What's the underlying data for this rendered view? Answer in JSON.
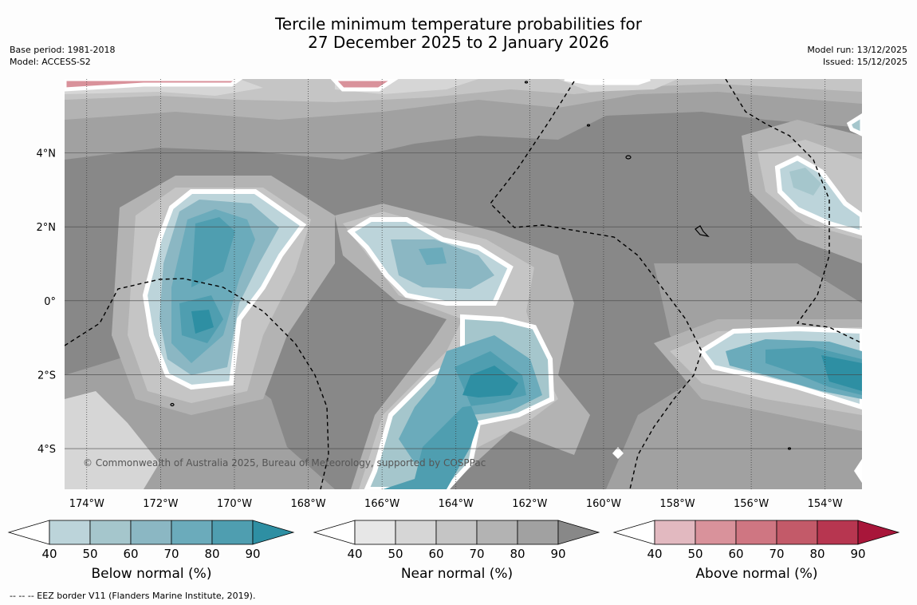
{
  "title": {
    "line1": "Tercile minimum temperature probabilities for",
    "line2": "27 December 2025 to 2 January 2026"
  },
  "meta_left": {
    "base_period": "Base period: 1981-2018",
    "model": "Model: ACCESS-S2"
  },
  "meta_right": {
    "model_run": "Model run: 13/12/2025",
    "issued": "Issued: 15/12/2025"
  },
  "map": {
    "copyright": "© Commonwealth of Australia 2025, Bureau of Meteorology, supported by COSPPac",
    "lon_labels": [
      "174°W",
      "172°W",
      "170°W",
      "168°W",
      "166°W",
      "164°W",
      "162°W",
      "160°W",
      "158°W",
      "156°W",
      "154°W"
    ],
    "lat_labels": [
      "4°N",
      "2°N",
      "0°",
      "2°S",
      "4°S"
    ],
    "lon_range": [
      -174.6,
      -153.0
    ],
    "lat_range": [
      -5.1,
      6.0
    ],
    "colors": {
      "below": [
        "#bcd4da",
        "#a5c6cc",
        "#8bb7c3",
        "#6babbb",
        "#4f9eb0",
        "#2e8fa3"
      ],
      "near": [
        "#e7e7e7",
        "#d6d6d6",
        "#c5c5c5",
        "#b3b3b3",
        "#a1a1a1",
        "#888888"
      ],
      "above": [
        "#e2b9c0",
        "#d9929b",
        "#cf7682",
        "#c35a69",
        "#b73650",
        "#a8163a"
      ]
    }
  },
  "colorbars": [
    {
      "label": "Below normal (%)",
      "ticks": [
        "40",
        "50",
        "60",
        "70",
        "80",
        "90"
      ],
      "category": "below"
    },
    {
      "label": "Near normal (%)",
      "ticks": [
        "40",
        "50",
        "60",
        "70",
        "80",
        "90"
      ],
      "category": "near"
    },
    {
      "label": "Above normal (%)",
      "ticks": [
        "40",
        "50",
        "60",
        "70",
        "80",
        "90"
      ],
      "category": "above"
    }
  ],
  "footnote": "--  --  -- EEZ border V11 (Flanders Marine Institute, 2019)."
}
